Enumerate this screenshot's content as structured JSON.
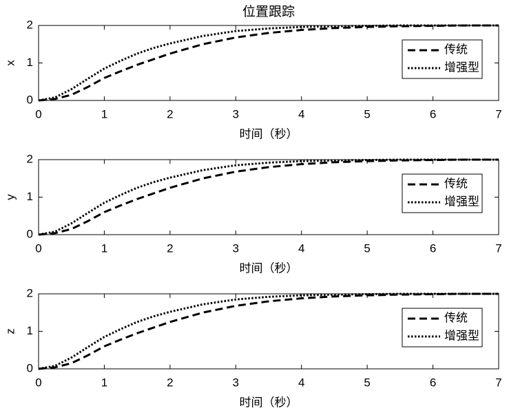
{
  "chart_data": [
    {
      "type": "line",
      "title": "位置跟踪",
      "xlabel": "时间（秒）",
      "ylabel": "x",
      "x": [
        0,
        0.25,
        0.5,
        0.75,
        1,
        1.25,
        1.5,
        1.75,
        2,
        2.5,
        3,
        3.5,
        4,
        4.5,
        5,
        5.5,
        6,
        6.5,
        7
      ],
      "series": [
        {
          "name": "传统",
          "color": "#000000",
          "style": "dashed",
          "values": [
            0,
            0.04,
            0.15,
            0.36,
            0.6,
            0.78,
            0.95,
            1.1,
            1.25,
            1.5,
            1.68,
            1.8,
            1.88,
            1.93,
            1.96,
            1.98,
            1.99,
            2.0,
            2.0
          ]
        },
        {
          "name": "增强型",
          "color": "#000000",
          "style": "dotted",
          "values": [
            0,
            0.08,
            0.3,
            0.58,
            0.85,
            1.06,
            1.25,
            1.4,
            1.52,
            1.72,
            1.85,
            1.92,
            1.96,
            1.98,
            1.99,
            2.0,
            2.0,
            2.0,
            2.0
          ]
        }
      ],
      "xlim": [
        0,
        7
      ],
      "ylim": [
        0,
        2
      ],
      "xticks": [
        0,
        1,
        2,
        3,
        4,
        5,
        6,
        7
      ],
      "yticks": [
        0,
        1,
        2
      ],
      "legend": "upper right"
    },
    {
      "type": "line",
      "xlabel": "时间（秒）",
      "ylabel": "y",
      "x": [
        0,
        0.25,
        0.5,
        0.75,
        1,
        1.25,
        1.5,
        1.75,
        2,
        2.5,
        3,
        3.5,
        4,
        4.5,
        5,
        5.5,
        6,
        6.5,
        7
      ],
      "series": [
        {
          "name": "传统",
          "color": "#000000",
          "style": "dashed",
          "values": [
            0,
            0.04,
            0.15,
            0.36,
            0.6,
            0.78,
            0.95,
            1.1,
            1.25,
            1.5,
            1.68,
            1.8,
            1.88,
            1.93,
            1.96,
            1.98,
            1.99,
            2.0,
            2.0
          ]
        },
        {
          "name": "增强型",
          "color": "#000000",
          "style": "dotted",
          "values": [
            0,
            0.08,
            0.3,
            0.58,
            0.85,
            1.06,
            1.25,
            1.4,
            1.52,
            1.72,
            1.85,
            1.92,
            1.96,
            1.98,
            1.99,
            2.0,
            2.0,
            2.0,
            2.0
          ]
        }
      ],
      "xlim": [
        0,
        7
      ],
      "ylim": [
        0,
        2
      ],
      "xticks": [
        0,
        1,
        2,
        3,
        4,
        5,
        6,
        7
      ],
      "yticks": [
        0,
        1,
        2
      ],
      "legend": "upper right"
    },
    {
      "type": "line",
      "xlabel": "时间（秒）",
      "ylabel": "z",
      "x": [
        0,
        0.25,
        0.5,
        0.75,
        1,
        1.25,
        1.5,
        1.75,
        2,
        2.5,
        3,
        3.5,
        4,
        4.5,
        5,
        5.5,
        6,
        6.5,
        7
      ],
      "series": [
        {
          "name": "传统",
          "color": "#000000",
          "style": "dashed",
          "values": [
            0,
            0.04,
            0.15,
            0.36,
            0.6,
            0.78,
            0.95,
            1.1,
            1.25,
            1.5,
            1.68,
            1.8,
            1.88,
            1.93,
            1.96,
            1.98,
            1.99,
            2.0,
            2.0
          ]
        },
        {
          "name": "增强型",
          "color": "#000000",
          "style": "dotted",
          "values": [
            0,
            0.08,
            0.3,
            0.58,
            0.85,
            1.06,
            1.25,
            1.4,
            1.52,
            1.72,
            1.85,
            1.92,
            1.96,
            1.98,
            1.99,
            2.0,
            2.0,
            2.0,
            2.0
          ]
        }
      ],
      "xlim": [
        0,
        7
      ],
      "ylim": [
        0,
        2
      ],
      "xticks": [
        0,
        1,
        2,
        3,
        4,
        5,
        6,
        7
      ],
      "yticks": [
        0,
        1,
        2
      ],
      "legend": "upper right"
    }
  ]
}
